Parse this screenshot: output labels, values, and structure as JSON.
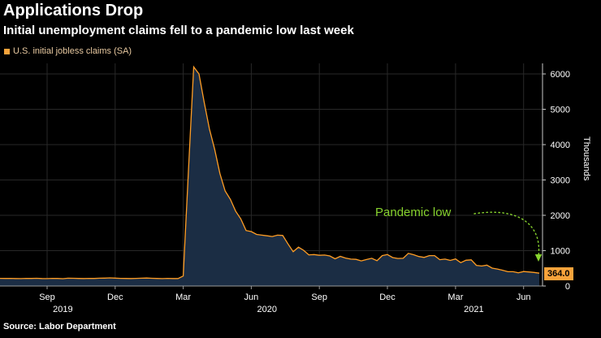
{
  "header": {
    "title": "Applications Drop",
    "subtitle": "Initial unemployment claims fell to a pandemic low last week"
  },
  "legend": {
    "label": "U.S. initial jobless claims (SA)",
    "swatch_color": "#f7a33b"
  },
  "annotation": {
    "text": "Pandemic low",
    "color": "#87d32e"
  },
  "value_label": {
    "text": "364.0",
    "bg_color": "#f7a33b",
    "text_color": "#000000"
  },
  "axis": {
    "y_unit": "Thousands"
  },
  "source": "Source: Labor Department",
  "chart_data": {
    "type": "area",
    "title": "U.S. initial jobless claims (SA)",
    "frequency": "weekly",
    "x_start": "2019-07-06",
    "x_end": "2021-06-26",
    "unit": "thousands",
    "values": [
      215,
      213,
      217,
      211,
      209,
      216,
      214,
      219,
      212,
      210,
      217,
      213,
      208,
      220,
      218,
      214,
      211,
      216,
      213,
      220,
      224,
      230,
      222,
      217,
      214,
      212,
      216,
      221,
      225,
      218,
      213,
      210,
      215,
      212,
      211,
      282,
      3300,
      6200,
      6000,
      5200,
      4440,
      3870,
      3180,
      2690,
      2450,
      2120,
      1900,
      1570,
      1540,
      1460,
      1440,
      1420,
      1400,
      1440,
      1430,
      1190,
      970,
      1100,
      1010,
      880,
      890,
      870,
      875,
      850,
      770,
      840,
      790,
      760,
      755,
      710,
      750,
      785,
      715,
      860,
      890,
      805,
      780,
      785,
      925,
      885,
      835,
      810,
      860,
      860,
      745,
      760,
      725,
      765,
      660,
      730,
      740,
      585,
      565,
      590,
      505,
      480,
      445,
      405,
      405,
      375,
      410,
      398,
      385,
      364
    ],
    "x_ticks": [
      {
        "index": 9,
        "label": "Sep"
      },
      {
        "index": 22,
        "label": "Dec"
      },
      {
        "index": 35,
        "label": "Mar"
      },
      {
        "index": 48,
        "label": "Jun"
      },
      {
        "index": 61,
        "label": "Sep"
      },
      {
        "index": 74,
        "label": "Dec"
      },
      {
        "index": 87,
        "label": "Mar"
      },
      {
        "index": 100,
        "label": "Jun"
      }
    ],
    "year_labels": [
      {
        "index": 12,
        "label": "2019"
      },
      {
        "index": 51,
        "label": "2020"
      },
      {
        "index": 90.5,
        "label": "2021"
      }
    ],
    "y_ticks": [
      0,
      1000,
      2000,
      3000,
      4000,
      5000,
      6000
    ],
    "ylim": [
      0,
      6300
    ],
    "ylabel": "Thousands",
    "grid": true,
    "legend_position": "top-left",
    "series_color": "#ff9d24",
    "fill_color": "#1b2d44",
    "peak_value": 6200,
    "last_value": 364.0
  }
}
